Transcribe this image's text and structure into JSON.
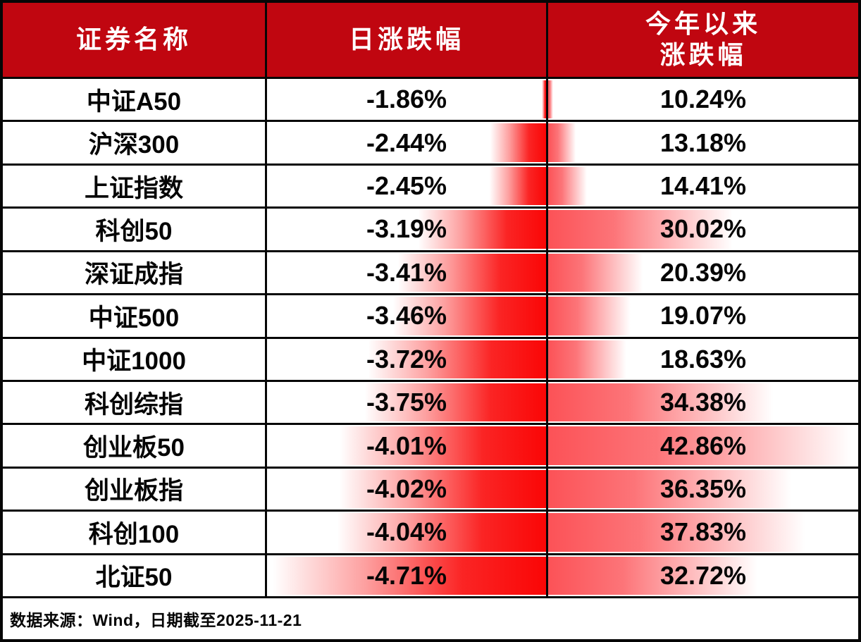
{
  "table": {
    "headers": {
      "name": "证券名称",
      "daily": "日涨跌幅",
      "ytd": "今年以来\n涨跌幅"
    },
    "rows": [
      {
        "name": "中证A50",
        "daily": -1.86,
        "daily_label": "-1.86%",
        "ytd": 10.24,
        "ytd_label": "10.24%"
      },
      {
        "name": "沪深300",
        "daily": -2.44,
        "daily_label": "-2.44%",
        "ytd": 13.18,
        "ytd_label": "13.18%"
      },
      {
        "name": "上证指数",
        "daily": -2.45,
        "daily_label": "-2.45%",
        "ytd": 14.41,
        "ytd_label": "14.41%"
      },
      {
        "name": "科创50",
        "daily": -3.19,
        "daily_label": "-3.19%",
        "ytd": 30.02,
        "ytd_label": "30.02%"
      },
      {
        "name": "深证成指",
        "daily": -3.41,
        "daily_label": "-3.41%",
        "ytd": 20.39,
        "ytd_label": "20.39%"
      },
      {
        "name": "中证500",
        "daily": -3.46,
        "daily_label": "-3.46%",
        "ytd": 19.07,
        "ytd_label": "19.07%"
      },
      {
        "name": "中证1000",
        "daily": -3.72,
        "daily_label": "-3.72%",
        "ytd": 18.63,
        "ytd_label": "18.63%"
      },
      {
        "name": "科创综指",
        "daily": -3.75,
        "daily_label": "-3.75%",
        "ytd": 34.38,
        "ytd_label": "34.38%"
      },
      {
        "name": "创业板50",
        "daily": -4.01,
        "daily_label": "-4.01%",
        "ytd": 42.86,
        "ytd_label": "42.86%"
      },
      {
        "name": "创业板指",
        "daily": -4.02,
        "daily_label": "-4.02%",
        "ytd": 36.35,
        "ytd_label": "36.35%"
      },
      {
        "name": "科创100",
        "daily": -4.04,
        "daily_label": "-4.04%",
        "ytd": 37.83,
        "ytd_label": "37.83%"
      },
      {
        "name": "北证50",
        "daily": -4.71,
        "daily_label": "-4.71%",
        "ytd": 32.72,
        "ytd_label": "32.72%"
      }
    ]
  },
  "footer": {
    "source_note": "数据来源：Wind，日期截至2025-11-21"
  },
  "colors": {
    "header_bg": "#c00610",
    "header_text": "#ffffff",
    "daily_bar_red": "#fa0606",
    "ytd_bar_red": "#fc5257",
    "border_black": "#060606",
    "cell_bg": "#ffffff",
    "body_text": "#050505"
  },
  "chart_data": {
    "type": "table",
    "title": "",
    "columns": [
      "证券名称",
      "日涨跌幅",
      "今年以来涨跌幅"
    ],
    "rows": [
      [
        "中证A50",
        "-1.86%",
        "10.24%"
      ],
      [
        "沪深300",
        "-2.44%",
        "13.18%"
      ],
      [
        "上证指数",
        "-2.45%",
        "14.41%"
      ],
      [
        "科创50",
        "-3.19%",
        "30.02%"
      ],
      [
        "深证成指",
        "-3.41%",
        "20.39%"
      ],
      [
        "中证500",
        "-3.46%",
        "19.07%"
      ],
      [
        "中证1000",
        "-3.72%",
        "18.63%"
      ],
      [
        "科创综指",
        "-3.75%",
        "34.38%"
      ],
      [
        "创业板50",
        "-4.01%",
        "42.86%"
      ],
      [
        "创业板指",
        "-4.02%",
        "36.35%"
      ],
      [
        "科创100",
        "-4.04%",
        "37.83%"
      ],
      [
        "北证50",
        "-4.71%",
        "32.72%"
      ]
    ],
    "databars": {
      "daily": {
        "anchor": "right",
        "scale_min_abs": 1.86,
        "scale_max_abs": 4.71,
        "color": "#fa0606",
        "gradient_fade": "toward-left"
      },
      "ytd": {
        "anchor": "left",
        "scale_min": 10.24,
        "scale_max": 42.86,
        "color": "#fc5257",
        "gradient_fade": "toward-right"
      }
    },
    "annotations": [
      "数据来源：Wind，日期截至2025-11-21"
    ]
  }
}
